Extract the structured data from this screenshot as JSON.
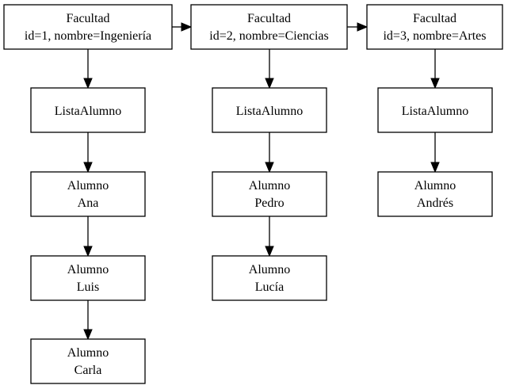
{
  "diagram": {
    "facultades": [
      {
        "id": "f1",
        "type": "Facultad",
        "label": "id=1, nombre=Ingeniería",
        "lista": {
          "id": "l1",
          "label": "ListaAlumno"
        },
        "alumnos": [
          {
            "id": "a1",
            "type": "Alumno",
            "name": "Ana"
          },
          {
            "id": "a2",
            "type": "Alumno",
            "name": "Luis"
          },
          {
            "id": "a3",
            "type": "Alumno",
            "name": "Carla"
          }
        ]
      },
      {
        "id": "f2",
        "type": "Facultad",
        "label": "id=2, nombre=Ciencias",
        "lista": {
          "id": "l2",
          "label": "ListaAlumno"
        },
        "alumnos": [
          {
            "id": "a4",
            "type": "Alumno",
            "name": "Pedro"
          },
          {
            "id": "a5",
            "type": "Alumno",
            "name": "Lucía"
          }
        ]
      },
      {
        "id": "f3",
        "type": "Facultad",
        "label": "id=3, nombre=Artes",
        "lista": {
          "id": "l3",
          "label": "ListaAlumno"
        },
        "alumnos": [
          {
            "id": "a6",
            "type": "Alumno",
            "name": "Andrés"
          }
        ]
      }
    ],
    "edges": [
      [
        "f1",
        "f2"
      ],
      [
        "f2",
        "f3"
      ],
      [
        "f1",
        "l1"
      ],
      [
        "l1",
        "a1"
      ],
      [
        "a1",
        "a2"
      ],
      [
        "a2",
        "a3"
      ],
      [
        "f2",
        "l2"
      ],
      [
        "l2",
        "a4"
      ],
      [
        "a4",
        "a5"
      ],
      [
        "f3",
        "l3"
      ],
      [
        "l3",
        "a6"
      ]
    ]
  }
}
